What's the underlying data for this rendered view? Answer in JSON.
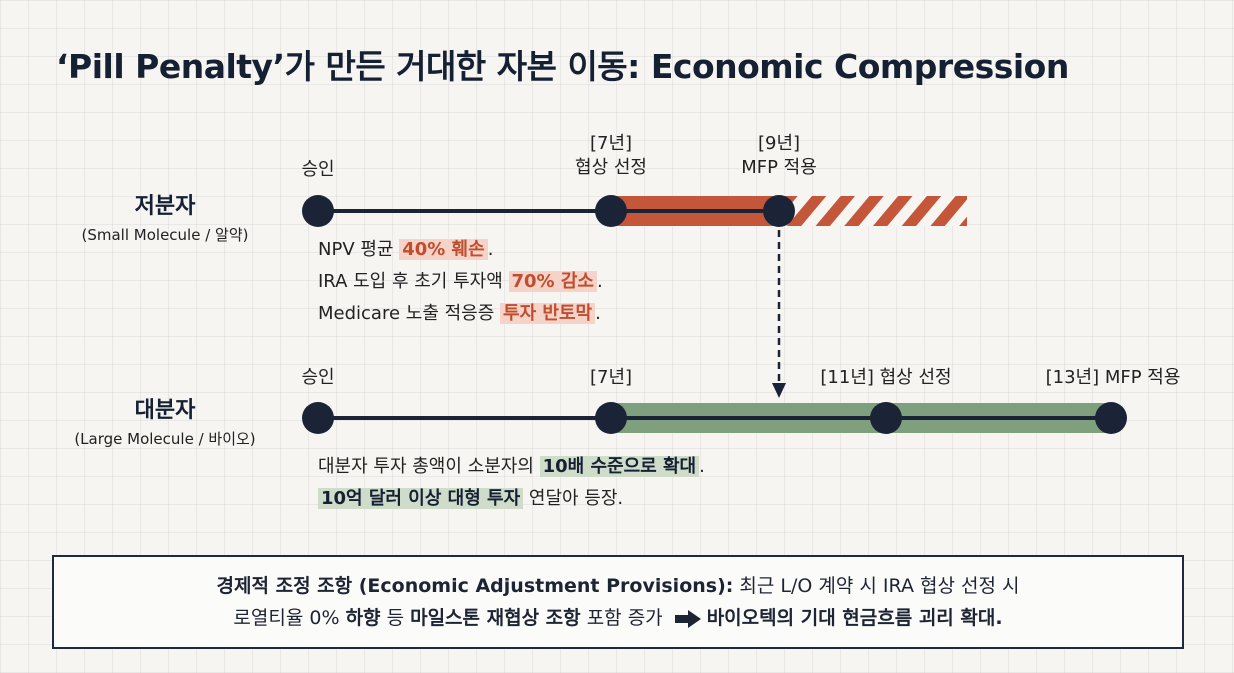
{
  "title": "‘Pill Penalty’가 만든 거대한 자본 이동: Economic Compression",
  "small": {
    "name": "저분자",
    "subname": "(Small Molecule / 알약)",
    "m_approval": "승인",
    "m_neg_year": "[7년]",
    "m_neg_label": "협상 선정",
    "m_mfp_year": "[9년]",
    "m_mfp_label": "MFP 적용",
    "d1_pre": "NPV 평균 ",
    "d1_hl": "40% 훼손",
    "d1_post": ".",
    "d2_pre": "IRA 도입 후 초기 투자액 ",
    "d2_hl": "70% 감소",
    "d2_post": ".",
    "d3_pre": "Medicare 노출 적응증 ",
    "d3_hl": "투자 반토막",
    "d3_post": "."
  },
  "large": {
    "name": "대분자",
    "subname": "(Large Molecule / 바이오)",
    "m_approval": "승인",
    "m_7": "[7년]",
    "m_neg": "[11년] 협상 선정",
    "m_mfp": "[13년] MFP 적용",
    "d1_pre": "대분자 투자 총액이 소분자의 ",
    "d1_hl": "10배 수준으로 확대",
    "d1_post": ".",
    "d2_hl": "10억 달러 이상 대형 투자",
    "d2_post": " 연달아 등장."
  },
  "footer": {
    "l1_bold": "경제적 조정 조항 (Economic Adjustment Provisions):",
    "l1_rest": " 최근 L/O 계약 시 IRA 협상 선정 시",
    "l2_a": "로열티율 0% ",
    "l2_b": "하향",
    "l2_c": " 등 ",
    "l2_d": "마일스톤 재협상 조항",
    "l2_e": " 포함 증가 ",
    "l2_f": "바이오텍의 기대 현금흐름 괴리 확대."
  },
  "colors": {
    "navy": "#1b2436",
    "red": "#c4573a",
    "green": "#7fa07d"
  }
}
